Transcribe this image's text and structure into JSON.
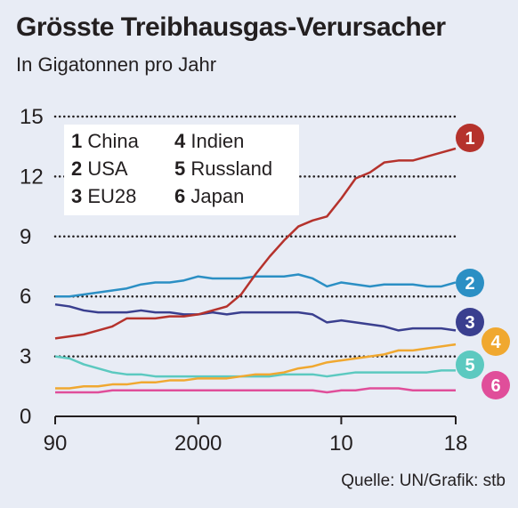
{
  "title": "Grösste Treibhausgas-Verursacher",
  "subtitle": "In Gigatonnen pro Jahr",
  "source": "Quelle: UN/Grafik: stb",
  "chart_data": {
    "type": "line",
    "title": "Grösste Treibhausgas-Verursacher",
    "subtitle": "In Gigatonnen pro Jahr",
    "ylim": [
      0,
      15
    ],
    "yticks": [
      0,
      3,
      6,
      9,
      12,
      15
    ],
    "xlim": [
      1990,
      2018
    ],
    "xtick_values": [
      1990,
      2000,
      2010,
      2018
    ],
    "xtick_labels": [
      "90",
      "2000",
      "10",
      "18"
    ],
    "grid": "horizontal dotted",
    "legend_position": "top-left",
    "x": [
      1990,
      1991,
      1992,
      1993,
      1994,
      1995,
      1996,
      1997,
      1998,
      1999,
      2000,
      2001,
      2002,
      2003,
      2004,
      2005,
      2006,
      2007,
      2008,
      2009,
      2010,
      2011,
      2012,
      2013,
      2014,
      2015,
      2016,
      2017,
      2018
    ],
    "series": [
      {
        "num": "1",
        "name": "China",
        "color": "#b5322c",
        "values": [
          3.9,
          4.0,
          4.1,
          4.3,
          4.5,
          4.9,
          4.9,
          4.9,
          5.0,
          5.0,
          5.1,
          5.3,
          5.5,
          6.1,
          7.1,
          8.0,
          8.8,
          9.5,
          9.8,
          10.0,
          10.9,
          11.9,
          12.2,
          12.7,
          12.8,
          12.8,
          13.0,
          13.2,
          13.4
        ]
      },
      {
        "num": "2",
        "name": "USA",
        "color": "#2b8fc4",
        "values": [
          6.0,
          6.0,
          6.1,
          6.2,
          6.3,
          6.4,
          6.6,
          6.7,
          6.7,
          6.8,
          7.0,
          6.9,
          6.9,
          6.9,
          7.0,
          7.0,
          7.0,
          7.1,
          6.9,
          6.5,
          6.7,
          6.6,
          6.5,
          6.6,
          6.6,
          6.6,
          6.5,
          6.5,
          6.7
        ]
      },
      {
        "num": "3",
        "name": "EU28",
        "color": "#3a3f8f",
        "values": [
          5.6,
          5.5,
          5.3,
          5.2,
          5.2,
          5.2,
          5.3,
          5.2,
          5.2,
          5.1,
          5.1,
          5.2,
          5.1,
          5.2,
          5.2,
          5.2,
          5.2,
          5.2,
          5.1,
          4.7,
          4.8,
          4.7,
          4.6,
          4.5,
          4.3,
          4.4,
          4.4,
          4.4,
          4.3
        ]
      },
      {
        "num": "4",
        "name": "Indien",
        "color": "#f0a830",
        "values": [
          1.4,
          1.4,
          1.5,
          1.5,
          1.6,
          1.6,
          1.7,
          1.7,
          1.8,
          1.8,
          1.9,
          1.9,
          1.9,
          2.0,
          2.1,
          2.1,
          2.2,
          2.4,
          2.5,
          2.7,
          2.8,
          2.9,
          3.0,
          3.1,
          3.3,
          3.3,
          3.4,
          3.5,
          3.6
        ]
      },
      {
        "num": "5",
        "name": "Russland",
        "color": "#5cc9c0",
        "values": [
          3.0,
          2.9,
          2.6,
          2.4,
          2.2,
          2.1,
          2.1,
          2.0,
          2.0,
          2.0,
          2.0,
          2.0,
          2.0,
          2.0,
          2.0,
          2.0,
          2.1,
          2.1,
          2.1,
          2.0,
          2.1,
          2.2,
          2.2,
          2.2,
          2.2,
          2.2,
          2.2,
          2.3,
          2.3
        ]
      },
      {
        "num": "6",
        "name": "Japan",
        "color": "#e04e9a",
        "values": [
          1.2,
          1.2,
          1.2,
          1.2,
          1.3,
          1.3,
          1.3,
          1.3,
          1.3,
          1.3,
          1.3,
          1.3,
          1.3,
          1.3,
          1.3,
          1.3,
          1.3,
          1.3,
          1.3,
          1.2,
          1.3,
          1.3,
          1.4,
          1.4,
          1.4,
          1.3,
          1.3,
          1.3,
          1.3
        ]
      }
    ]
  }
}
